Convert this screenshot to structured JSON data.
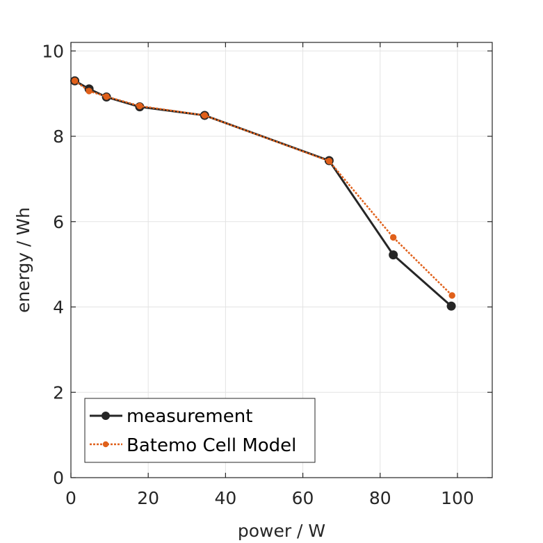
{
  "chart_data": {
    "type": "line",
    "xlabel": "power / W",
    "ylabel": "energy / Wh",
    "xlim": [
      0,
      109
    ],
    "ylim": [
      0,
      10.2
    ],
    "xticks": [
      0,
      20,
      40,
      60,
      80,
      100
    ],
    "yticks": [
      0,
      2,
      4,
      6,
      8,
      10
    ],
    "grid": true,
    "legend_position": "bottom-left",
    "series": [
      {
        "name": "measurement",
        "color": "#262626",
        "line_style": "solid",
        "marker": "circle-large",
        "x": [
          1.0,
          4.7,
          9.2,
          17.8,
          34.6,
          66.8,
          83.4,
          98.4
        ],
        "y": [
          9.3,
          9.11,
          8.92,
          8.69,
          8.49,
          7.43,
          5.22,
          4.02
        ]
      },
      {
        "name": "Batemo Cell Model",
        "color": "#e0601a",
        "line_style": "dotted",
        "marker": "circle-small",
        "x": [
          1.0,
          4.7,
          9.2,
          17.8,
          34.6,
          66.8,
          83.4,
          98.6
        ],
        "y": [
          9.3,
          9.06,
          8.93,
          8.71,
          8.49,
          7.42,
          5.63,
          4.27
        ]
      }
    ]
  }
}
